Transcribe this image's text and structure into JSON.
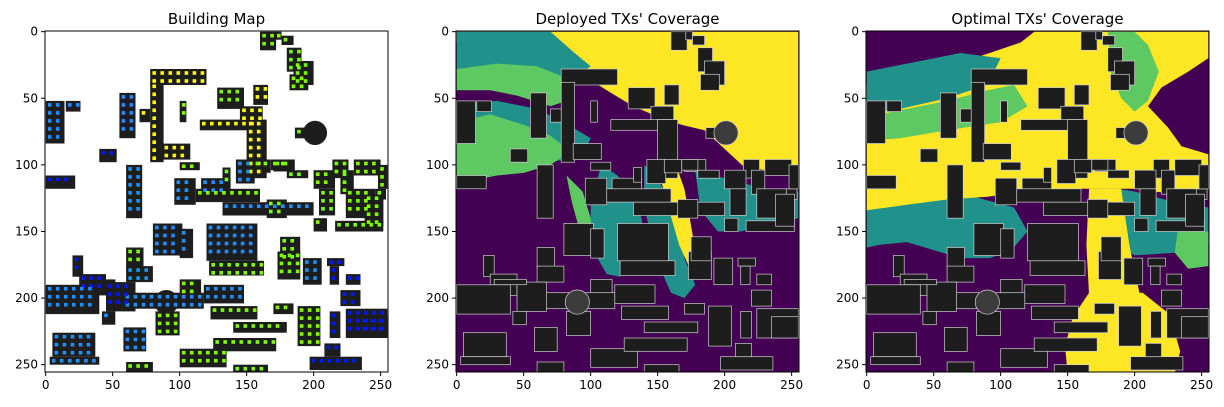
{
  "colors": {
    "building": "#1d1d1d",
    "building_edge": "#cfcfcf",
    "cov_low": "#440154",
    "cov_midlow": "#21918c",
    "cov_mid": "#5ec962",
    "cov_high": "#fde725",
    "tx_lime": "#7cff00",
    "tx_yellow": "#ffff00",
    "tx_cyan": "#00c8ff",
    "tx_blue": "#0018ff",
    "tx_azure": "#1e90ff"
  },
  "chart_data": [
    {
      "type": "heatmap",
      "title": "Building Map",
      "xlim": [
        0,
        255
      ],
      "ylim": [
        255,
        0
      ],
      "xticks": [
        0,
        50,
        100,
        150,
        200,
        250
      ],
      "yticks": [
        0,
        50,
        100,
        150,
        200,
        250
      ],
      "background": "white"
    },
    {
      "type": "heatmap",
      "title": "Deployed TXs' Coverage",
      "xlim": [
        0,
        255
      ],
      "ylim": [
        255,
        0
      ],
      "xticks": [
        0,
        50,
        100,
        150,
        200,
        250
      ],
      "yticks": [
        0,
        50,
        100,
        150,
        200,
        250
      ],
      "colormap": "viridis"
    },
    {
      "type": "heatmap",
      "title": "Optimal TXs' Coverage",
      "xlim": [
        0,
        255
      ],
      "ylim": [
        255,
        0
      ],
      "xticks": [
        0,
        50,
        100,
        150,
        200,
        250
      ],
      "yticks": [
        0,
        50,
        100,
        150,
        200,
        250
      ],
      "colormap": "viridis"
    }
  ]
}
